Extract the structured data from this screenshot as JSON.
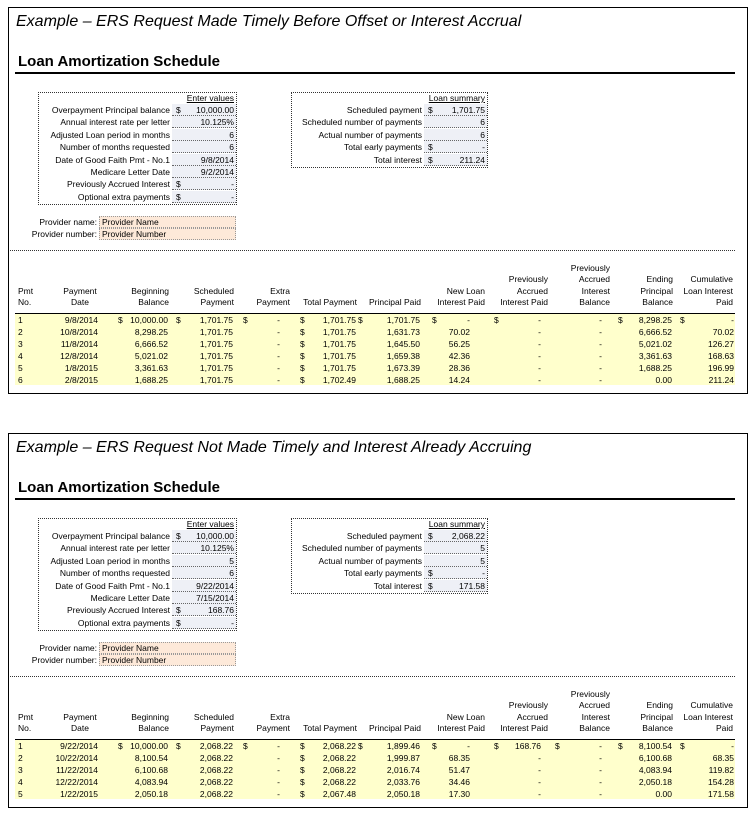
{
  "examples": [
    {
      "title": "Example – ERS Request Made Timely Before Offset or Interest Accrual",
      "heading": "Loan Amortization Schedule",
      "inputs": {
        "header": "Enter values",
        "rows": [
          [
            "Overpayment Principal balance",
            [
              "$",
              "10,000.00"
            ]
          ],
          [
            "Annual interest rate per letter",
            "10.125%"
          ],
          [
            "Adjusted Loan period in months",
            "6"
          ],
          [
            "Number of months requested",
            "6"
          ],
          [
            "Date of Good Faith Pmt - No.1",
            "9/8/2014"
          ],
          [
            "Medicare Letter Date",
            "9/2/2014"
          ],
          [
            "Previously Accrued Interest",
            [
              "$",
              "-"
            ]
          ],
          [
            "Optional extra payments",
            [
              "$",
              "-"
            ]
          ]
        ]
      },
      "summary": {
        "header": "Loan summary",
        "rows": [
          [
            "Scheduled payment",
            [
              "$",
              "1,701.75"
            ]
          ],
          [
            "Scheduled number of payments",
            "6"
          ],
          [
            "Actual number of payments",
            "6"
          ],
          [
            "Total early payments",
            [
              "$",
              "-"
            ]
          ],
          [
            "Total interest",
            [
              "$",
              "211.24"
            ]
          ]
        ]
      },
      "provider": [
        [
          "Provider name:",
          "Provider Name"
        ],
        [
          "Provider number:",
          "Provider Number"
        ]
      ],
      "table": {
        "columns": [
          [
            "Pmt",
            "No."
          ],
          [
            "Payment",
            "Date"
          ],
          [
            "Beginning",
            "Balance"
          ],
          [
            "Scheduled",
            "Payment"
          ],
          [
            "Extra",
            "Payment"
          ],
          [
            "Total Payment"
          ],
          [
            "Principal Paid"
          ],
          [
            "New Loan",
            "Interest Paid"
          ],
          [
            "Previously",
            "Accrued",
            "Interest Paid"
          ],
          [
            "Previously",
            "Accrued",
            "Interest",
            "Balance"
          ],
          [
            "Ending",
            "Principal",
            "Balance"
          ],
          [
            "Cumulative",
            "Loan Interest",
            "Paid"
          ]
        ],
        "rows": [
          [
            "1",
            "9/8/2014",
            [
              "$",
              "10,000.00"
            ],
            [
              "$",
              "1,701.75"
            ],
            [
              "$",
              "-"
            ],
            [
              "$",
              "1,701.75"
            ],
            [
              "$",
              "1,701.75"
            ],
            [
              "$",
              "-"
            ],
            [
              "$",
              "-"
            ],
            "-",
            [
              "$",
              "8,298.25"
            ],
            [
              "$",
              "-"
            ]
          ],
          [
            "2",
            "10/8/2014",
            "8,298.25",
            "1,701.75",
            "-",
            [
              "$",
              "1,701.75"
            ],
            "1,631.73",
            "70.02",
            "-",
            "-",
            "6,666.52",
            "70.02"
          ],
          [
            "3",
            "11/8/2014",
            "6,666.52",
            "1,701.75",
            "-",
            [
              "$",
              "1,701.75"
            ],
            "1,645.50",
            "56.25",
            "-",
            "-",
            "5,021.02",
            "126.27"
          ],
          [
            "4",
            "12/8/2014",
            "5,021.02",
            "1,701.75",
            "-",
            [
              "$",
              "1,701.75"
            ],
            "1,659.38",
            "42.36",
            "-",
            "-",
            "3,361.63",
            "168.63"
          ],
          [
            "5",
            "1/8/2015",
            "3,361.63",
            "1,701.75",
            "-",
            [
              "$",
              "1,701.75"
            ],
            "1,673.39",
            "28.36",
            "-",
            "-",
            "1,688.25",
            "196.99"
          ],
          [
            "6",
            "2/8/2015",
            "1,688.25",
            "1,701.75",
            "-",
            [
              "$",
              "1,702.49"
            ],
            "1,688.25",
            "14.24",
            "-",
            "-",
            "0.00",
            "211.24"
          ]
        ]
      }
    },
    {
      "title": "Example – ERS Request Not Made Timely and Interest Already Accruing",
      "heading": "Loan Amortization Schedule",
      "inputs": {
        "header": "Enter values",
        "rows": [
          [
            "Overpayment Principal balance",
            [
              "$",
              "10,000.00"
            ]
          ],
          [
            "Annual interest rate per letter",
            "10.125%"
          ],
          [
            "Adjusted Loan period in months",
            "5"
          ],
          [
            "Number of months requested",
            "6"
          ],
          [
            "Date of Good Faith Pmt - No.1",
            "9/22/2014"
          ],
          [
            "Medicare Letter Date",
            "7/15/2014"
          ],
          [
            "Previously Accrued Interest",
            [
              "$",
              "168.76"
            ]
          ],
          [
            "Optional extra payments",
            [
              "$",
              "-"
            ]
          ]
        ]
      },
      "summary": {
        "header": "Loan summary",
        "rows": [
          [
            "Scheduled payment",
            [
              "$",
              "2,068.22"
            ]
          ],
          [
            "Scheduled number of payments",
            "5"
          ],
          [
            "Actual number of payments",
            "5"
          ],
          [
            "Total early payments",
            [
              "$",
              "-"
            ]
          ],
          [
            "Total interest",
            [
              "$",
              "171.58"
            ]
          ]
        ]
      },
      "provider": [
        [
          "Provider name:",
          "Provider Name"
        ],
        [
          "Provider number:",
          "Provider Number"
        ]
      ],
      "table": {
        "columns": [
          [
            "Pmt",
            "No."
          ],
          [
            "Payment",
            "Date"
          ],
          [
            "Beginning",
            "Balance"
          ],
          [
            "Scheduled",
            "Payment"
          ],
          [
            "Extra",
            "Payment"
          ],
          [
            "Total Payment"
          ],
          [
            "Principal Paid"
          ],
          [
            "New Loan",
            "Interest Paid"
          ],
          [
            "Previously",
            "Accrued",
            "Interest Paid"
          ],
          [
            "Previously",
            "Accrued",
            "Interest",
            "Balance"
          ],
          [
            "Ending",
            "Principal",
            "Balance"
          ],
          [
            "Cumulative",
            "Loan Interest",
            "Paid"
          ]
        ],
        "rows": [
          [
            "1",
            "9/22/2014",
            [
              "$",
              "10,000.00"
            ],
            [
              "$",
              "2,068.22"
            ],
            [
              "$",
              "-"
            ],
            [
              "$",
              "2,068.22"
            ],
            [
              "$",
              "1,899.46"
            ],
            [
              "$",
              "-"
            ],
            [
              "$",
              "168.76"
            ],
            [
              "$",
              "-"
            ],
            [
              "$",
              "8,100.54"
            ],
            [
              "$",
              "-"
            ]
          ],
          [
            "2",
            "10/22/2014",
            "8,100.54",
            "2,068.22",
            "-",
            [
              "$",
              "2,068.22"
            ],
            "1,999.87",
            "68.35",
            "-",
            "-",
            "6,100.68",
            "68.35"
          ],
          [
            "3",
            "11/22/2014",
            "6,100.68",
            "2,068.22",
            "-",
            [
              "$",
              "2,068.22"
            ],
            "2,016.74",
            "51.47",
            "-",
            "-",
            "4,083.94",
            "119.82"
          ],
          [
            "4",
            "12/22/2014",
            "4,083.94",
            "2,068.22",
            "-",
            [
              "$",
              "2,068.22"
            ],
            "2,033.76",
            "34.46",
            "-",
            "-",
            "2,050.18",
            "154.28"
          ],
          [
            "5",
            "1/22/2015",
            "2,050.18",
            "2,068.22",
            "-",
            [
              "$",
              "2,067.48"
            ],
            "2,050.18",
            "17.30",
            "-",
            "-",
            "0.00",
            "171.58"
          ]
        ]
      }
    }
  ]
}
